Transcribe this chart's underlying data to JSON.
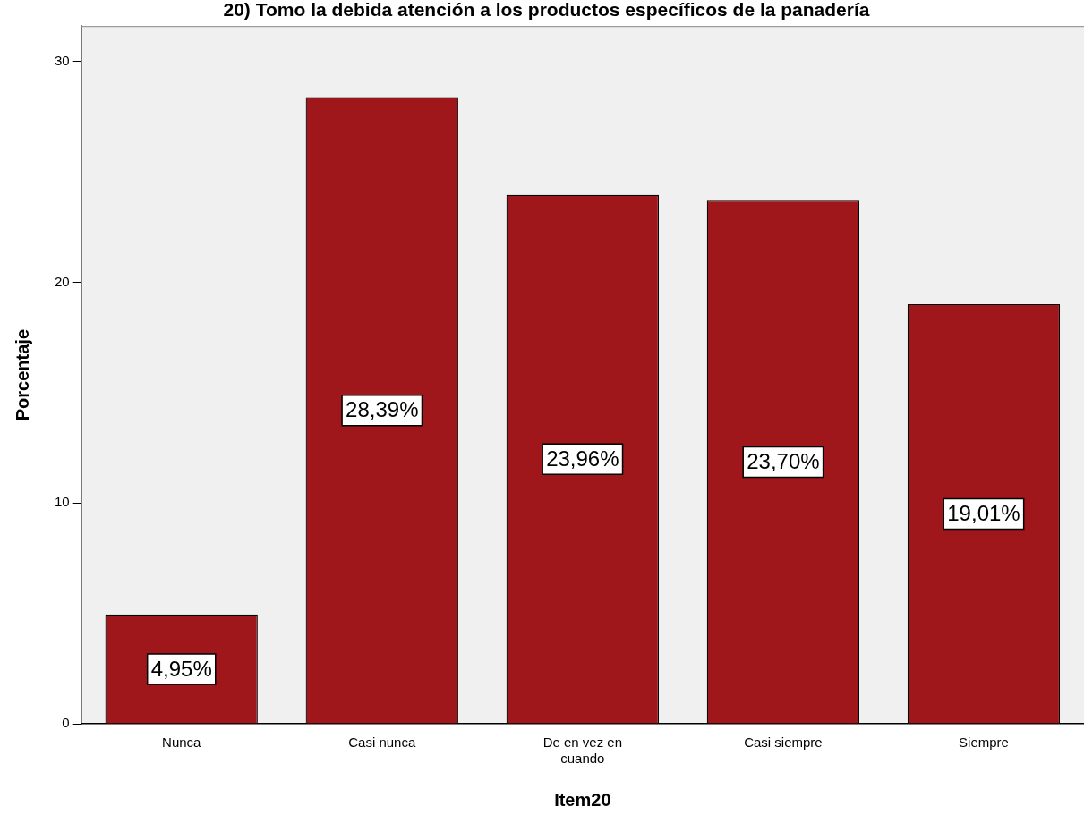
{
  "chart_data": {
    "type": "bar",
    "title": "20) Tomo la debida atención a los productos específicos de la panadería",
    "xlabel": "Item20",
    "ylabel": "Porcentaje",
    "categories": [
      "Nunca",
      "Casi nunca",
      "De en vez en cuando",
      "Casi siempre",
      "Siempre"
    ],
    "values": [
      4.95,
      28.39,
      23.96,
      23.7,
      19.01
    ],
    "value_labels": [
      "4,95%",
      "28,39%",
      "23,96%",
      "23,70%",
      "19,01%"
    ],
    "color": "#a0171b",
    "ylim": [
      0,
      31.6
    ],
    "yticks": [
      0,
      10,
      20,
      30
    ],
    "grid": false,
    "legend": false
  }
}
